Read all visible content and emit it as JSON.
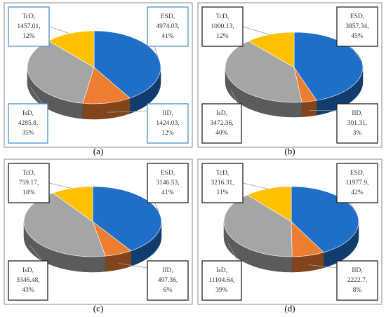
{
  "colors": {
    "ESD": "#1f6fc8",
    "IID": "#ed7d31",
    "IsD": "#a5a5a5",
    "TcD": "#ffc000",
    "box_blue": "#4a90d0",
    "box_black": "#222222"
  },
  "chart_data": [
    {
      "type": "pie",
      "caption": "(a)",
      "box_color": "blue",
      "slices": [
        {
          "label": "ESD",
          "value": 4974.03,
          "value_text": "4974.03,",
          "percent": 41,
          "percent_text": "41%"
        },
        {
          "label": "IID",
          "value": 1424.03,
          "value_text": "1424.03,",
          "percent": 12,
          "percent_text": "12%"
        },
        {
          "label": "IsD",
          "value": 4285.8,
          "value_text": "4285.8,",
          "percent": 35,
          "percent_text": "35%"
        },
        {
          "label": "TcD",
          "value": 1457.01,
          "value_text": "1457.01,",
          "percent": 12,
          "percent_text": "12%"
        }
      ]
    },
    {
      "type": "pie",
      "caption": "(b)",
      "box_color": "black",
      "slices": [
        {
          "label": "ESD",
          "value": 3857.34,
          "value_text": "3857.34,",
          "percent": 45,
          "percent_text": "45%"
        },
        {
          "label": "IID",
          "value": 301.31,
          "value_text": "301.31,",
          "percent": 3,
          "percent_text": "3%"
        },
        {
          "label": "IsD",
          "value": 3472.36,
          "value_text": "3472.36,",
          "percent": 40,
          "percent_text": "40%"
        },
        {
          "label": "TcD",
          "value": 1000.13,
          "value_text": "1000.13,",
          "percent": 12,
          "percent_text": "12%"
        }
      ]
    },
    {
      "type": "pie",
      "caption": "(c)",
      "box_color": "black",
      "slices": [
        {
          "label": "ESD",
          "value": 3146.53,
          "value_text": "3146.53,",
          "percent": 41,
          "percent_text": "41%"
        },
        {
          "label": "IID",
          "value": 497.36,
          "value_text": "497.36,",
          "percent": 6,
          "percent_text": "6%"
        },
        {
          "label": "IsD",
          "value": 3346.48,
          "value_text": "3346.48,",
          "percent": 43,
          "percent_text": "43%"
        },
        {
          "label": "TcD",
          "value": 759.17,
          "value_text": "759.17,",
          "percent": 10,
          "percent_text": "10%"
        }
      ]
    },
    {
      "type": "pie",
      "caption": "(d)",
      "box_color": "black",
      "slices": [
        {
          "label": "ESD",
          "value": 11977.9,
          "value_text": "11977.9,",
          "percent": 42,
          "percent_text": "42%"
        },
        {
          "label": "IID",
          "value": 2222.7,
          "value_text": "2222.7,",
          "percent": 8,
          "percent_text": "8%"
        },
        {
          "label": "IsD",
          "value": 11104.64,
          "value_text": "11104.64,",
          "percent": 39,
          "percent_text": "39%"
        },
        {
          "label": "TcD",
          "value": 3216.31,
          "value_text": "3216.31,",
          "percent": 11,
          "percent_text": "11%"
        }
      ]
    }
  ]
}
